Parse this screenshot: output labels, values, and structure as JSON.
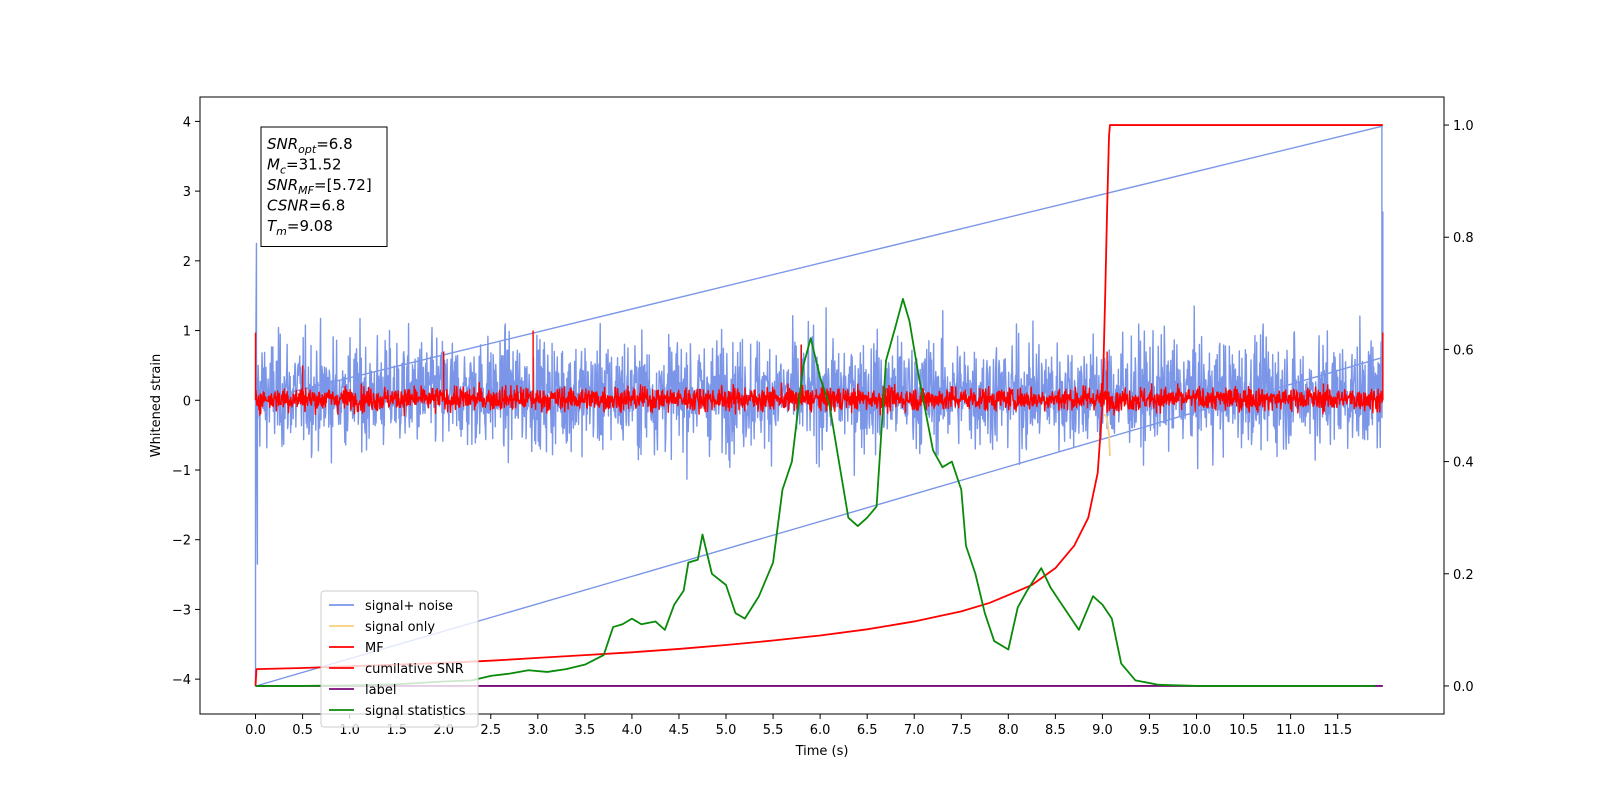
{
  "chart_data": {
    "type": "line",
    "xlabel": "Time (s)",
    "ylabel": "Whitened strain",
    "xlim": [
      -0.59,
      12.63
    ],
    "ylim_left": [
      -4.5,
      4.35
    ],
    "ylim_right": [
      -0.05,
      1.05
    ],
    "x_ticks": [
      "0.0",
      "0.5",
      "1.0",
      "1.5",
      "2.0",
      "2.5",
      "3.0",
      "3.5",
      "4.0",
      "4.5",
      "5.0",
      "5.5",
      "6.0",
      "6.5",
      "7.0",
      "7.5",
      "8.0",
      "8.5",
      "9.0",
      "9.5",
      "10.0",
      "10.5",
      "11.0",
      "11.5"
    ],
    "y_ticks_left": [
      "4",
      "3",
      "2",
      "1",
      "0",
      "−1",
      "−2",
      "−3",
      "−4"
    ],
    "y_ticks_right": [
      "1.0",
      "0.8",
      "0.6",
      "0.4",
      "0.2",
      "0.0"
    ],
    "annotation": {
      "lines": [
        {
          "base": "SNR",
          "sub": "opt",
          "rest": "=6.8"
        },
        {
          "base": "M",
          "sub": "c",
          "rest": "=31.52"
        },
        {
          "base": "SNR",
          "sub": "MF",
          "rest": "=[5.72]"
        },
        {
          "base": "CSNR",
          "sub": "",
          "rest": "=6.8"
        },
        {
          "base": "T",
          "sub": "m",
          "rest": "=9.08"
        }
      ]
    },
    "legend_position": "lower-left",
    "legend": [
      {
        "label": "signal+ noise",
        "color": "#7b96e8"
      },
      {
        "label": "signal only",
        "color": "#f5cf7c"
      },
      {
        "label": "MF",
        "color": "#ff0000"
      },
      {
        "label": "cumilative SNR",
        "color": "#ff0000"
      },
      {
        "label": "label",
        "color": "#7a0a7a"
      },
      {
        "label": "signal statistics",
        "color": "#0a8a0a"
      }
    ],
    "series": [
      {
        "name": "signal+ noise",
        "axis": "left",
        "color": "#7b96e8",
        "description_points": {
          "x_range": [
            0.0,
            11.98
          ],
          "band_low_typical": -1.1,
          "band_high_typical": 1.3,
          "spikes": [
            [
              0.0,
              -4.1
            ],
            [
              0.01,
              2.25
            ],
            [
              0.02,
              -2.35
            ],
            [
              11.97,
              3.93
            ],
            [
              11.98,
              2.7
            ]
          ]
        }
      },
      {
        "name": "signal only",
        "axis": "left",
        "color": "#f5cf7c",
        "points": [
          [
            9.02,
            -0.2
          ],
          [
            9.05,
            -0.25
          ],
          [
            9.07,
            -0.5
          ],
          [
            9.08,
            -0.8
          ]
        ]
      },
      {
        "name": "MF",
        "axis": "left",
        "color": "#ff0000",
        "description_points": {
          "x_range": [
            0.0,
            11.98
          ],
          "band_low_typical": -0.28,
          "band_high_typical": 0.35,
          "spikes": [
            [
              0.0,
              0.97
            ],
            [
              0.5,
              0.5
            ],
            [
              2.0,
              0.7
            ],
            [
              2.95,
              1.0
            ],
            [
              5.8,
              0.8
            ],
            [
              9.05,
              0.7
            ],
            [
              11.98,
              0.97
            ]
          ]
        }
      },
      {
        "name": "cumilative SNR",
        "axis": "right",
        "color": "#ff0000",
        "points": [
          [
            0.0,
            0.0
          ],
          [
            0.01,
            0.03
          ],
          [
            0.5,
            0.032
          ],
          [
            1.0,
            0.035
          ],
          [
            1.5,
            0.038
          ],
          [
            2.0,
            0.041
          ],
          [
            2.5,
            0.045
          ],
          [
            3.0,
            0.05
          ],
          [
            3.5,
            0.055
          ],
          [
            4.0,
            0.06
          ],
          [
            4.5,
            0.066
          ],
          [
            5.0,
            0.073
          ],
          [
            5.5,
            0.081
          ],
          [
            6.0,
            0.09
          ],
          [
            6.5,
            0.101
          ],
          [
            7.0,
            0.115
          ],
          [
            7.5,
            0.133
          ],
          [
            7.8,
            0.148
          ],
          [
            8.0,
            0.162
          ],
          [
            8.25,
            0.18
          ],
          [
            8.5,
            0.21
          ],
          [
            8.7,
            0.25
          ],
          [
            8.85,
            0.3
          ],
          [
            8.95,
            0.38
          ],
          [
            9.0,
            0.5
          ],
          [
            9.03,
            0.7
          ],
          [
            9.05,
            0.85
          ],
          [
            9.07,
            0.98
          ],
          [
            9.08,
            1.0
          ],
          [
            11.98,
            1.0
          ]
        ]
      },
      {
        "name": "label",
        "axis": "right",
        "color": "#7a0a7a",
        "points": [
          [
            0.0,
            0.0
          ],
          [
            11.98,
            0.0
          ]
        ]
      },
      {
        "name": "signal statistics",
        "axis": "right",
        "color": "#0a8a0a",
        "points": [
          [
            0.0,
            0.0
          ],
          [
            0.5,
            0.0
          ],
          [
            1.0,
            0.001
          ],
          [
            1.5,
            0.003
          ],
          [
            2.0,
            0.008
          ],
          [
            2.3,
            0.01
          ],
          [
            2.5,
            0.018
          ],
          [
            2.7,
            0.022
          ],
          [
            2.9,
            0.028
          ],
          [
            3.1,
            0.025
          ],
          [
            3.3,
            0.03
          ],
          [
            3.5,
            0.038
          ],
          [
            3.7,
            0.055
          ],
          [
            3.8,
            0.105
          ],
          [
            3.9,
            0.11
          ],
          [
            4.0,
            0.12
          ],
          [
            4.1,
            0.11
          ],
          [
            4.25,
            0.115
          ],
          [
            4.35,
            0.1
          ],
          [
            4.45,
            0.145
          ],
          [
            4.55,
            0.17
          ],
          [
            4.6,
            0.22
          ],
          [
            4.7,
            0.225
          ],
          [
            4.75,
            0.27
          ],
          [
            4.85,
            0.2
          ],
          [
            5.0,
            0.18
          ],
          [
            5.1,
            0.13
          ],
          [
            5.2,
            0.12
          ],
          [
            5.35,
            0.16
          ],
          [
            5.5,
            0.22
          ],
          [
            5.6,
            0.35
          ],
          [
            5.7,
            0.4
          ],
          [
            5.82,
            0.57
          ],
          [
            5.9,
            0.62
          ],
          [
            6.0,
            0.55
          ],
          [
            6.1,
            0.5
          ],
          [
            6.2,
            0.4
          ],
          [
            6.3,
            0.3
          ],
          [
            6.4,
            0.285
          ],
          [
            6.5,
            0.3
          ],
          [
            6.6,
            0.32
          ],
          [
            6.7,
            0.58
          ],
          [
            6.8,
            0.64
          ],
          [
            6.88,
            0.69
          ],
          [
            6.95,
            0.65
          ],
          [
            7.05,
            0.55
          ],
          [
            7.2,
            0.42
          ],
          [
            7.3,
            0.39
          ],
          [
            7.4,
            0.4
          ],
          [
            7.5,
            0.35
          ],
          [
            7.55,
            0.25
          ],
          [
            7.65,
            0.2
          ],
          [
            7.75,
            0.13
          ],
          [
            7.85,
            0.08
          ],
          [
            8.0,
            0.065
          ],
          [
            8.1,
            0.14
          ],
          [
            8.2,
            0.17
          ],
          [
            8.35,
            0.21
          ],
          [
            8.45,
            0.175
          ],
          [
            8.55,
            0.15
          ],
          [
            8.65,
            0.125
          ],
          [
            8.75,
            0.1
          ],
          [
            8.9,
            0.16
          ],
          [
            9.0,
            0.145
          ],
          [
            9.1,
            0.12
          ],
          [
            9.2,
            0.04
          ],
          [
            9.35,
            0.01
          ],
          [
            9.6,
            0.002
          ],
          [
            10.0,
            0.0
          ],
          [
            11.9,
            0.0
          ]
        ]
      }
    ]
  }
}
